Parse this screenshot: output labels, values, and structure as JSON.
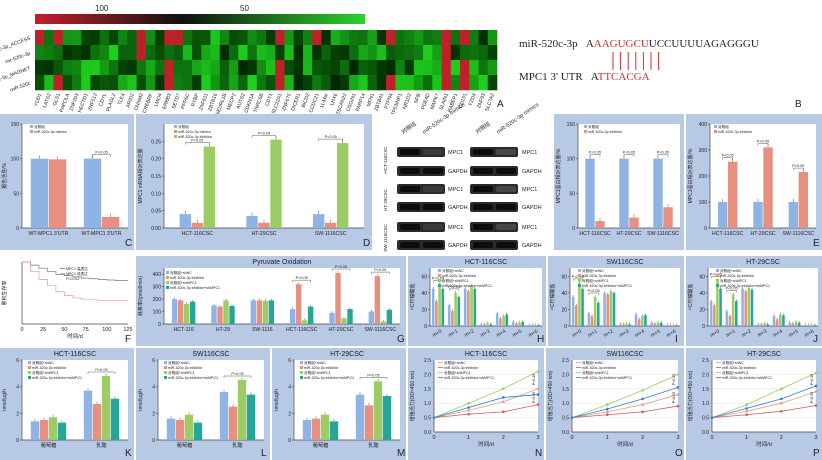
{
  "colors": {
    "panel_bg": "#b8c9e6",
    "plot_bg": "#ffffff",
    "heat_low": "#1a1a1a",
    "heat_green": "#2cd22c",
    "heat_red": "#c0202a",
    "blue": "#8fb4e3",
    "salmon": "#e8907f",
    "green": "#9ccc65",
    "teal": "#26a69a",
    "red_text": "#d32f2f"
  },
  "panelA": {
    "letter": "A",
    "scale_labels": [
      "100",
      "50"
    ],
    "row_labels": [
      "miR-520c-3p_ACCESS",
      "mir-520c-3p",
      "miR-520c-3p_MAGNET",
      "miR-520c"
    ],
    "col_labels": [
      "YOD1",
      "LATS2",
      "GLS1",
      "PAPOLA",
      "ZNF263",
      "HECTD1",
      "ZNF512",
      "CDYL",
      "PLAGL2",
      "TLE4",
      "ARID2",
      "CNNM2",
      "CREBRF",
      "LMO4",
      "ERBB3",
      "SETD7",
      "PPP6C",
      "RYBP",
      "ZNF611",
      "ZBTB16",
      "NEURL1B",
      "MECP2",
      "AUTS2",
      "CDKN1A",
      "TNRC6B",
      "CDT1",
      "SLC22A1",
      "ZNF675",
      "DICER1",
      "BICD2",
      "CCDC21",
      "11-Mar",
      "LHX6",
      "ZSCAN22",
      "OSGIN1",
      "PARP14",
      "MFN1",
      "ZBTB41",
      "PTPN4",
      "TP53INP1",
      "NR1D2",
      "NPB",
      "PDE4D",
      "MAPK7",
      "SLAIN1",
      "RABEP1",
      "CD151",
      "FZD4",
      "ZNF93",
      "SLC7A2"
    ]
  },
  "panelB": {
    "letter": "B",
    "mirna_label": "miR-520c-3p",
    "mirna_seq_prefix": "A",
    "mirna_seq_seed": "AAGUGCU",
    "mirna_seq_rest": "UCCUUUUAGAGGGU",
    "mrna_label": "MPC1 3' UTR",
    "mrna_seq_prefix": "A",
    "mrna_seq_seed": "TTCACGA"
  },
  "panelC": {
    "letter": "C",
    "ylabel": "报告活性/%",
    "yticks": [
      "0",
      "50",
      "100",
      "150"
    ],
    "legend": [
      "对照组",
      "miR-520c-3p mimics"
    ],
    "pvalue": "P<0.05",
    "categories": [
      "WT-MPC1 3'UTR",
      "WT-MPC1 3'UTR"
    ]
  },
  "panelD": {
    "letter": "D",
    "ylabel": "MPC1 mRNA相对表达量",
    "yticks": [
      "0.00",
      "0.05",
      "0.10",
      "0.15",
      "0.20",
      "0.25"
    ],
    "legend": [
      "对照组",
      "miR-520c-3p mimics",
      "miR-520c-3p inhibitor"
    ],
    "pvalue": "P<0.05",
    "categories": [
      "HCT-116CSC",
      "HT-29CSC",
      "SW-1116CSC"
    ]
  },
  "panelBlot": {
    "headers": [
      "对照组",
      "miR-520c-3p mimics",
      "对照组",
      "miR-520c-3p mimics"
    ],
    "row_labels": [
      "MPC1",
      "GAPDH",
      "MPC1",
      "GAPDH",
      "MPC1",
      "GAPDH"
    ],
    "side_labels": [
      "HCT-116CSC",
      "HT-29CSC",
      "SW-1116CSC"
    ]
  },
  "panelE1": {
    "ylabel": "MPC1蛋白相对表达量/%",
    "yticks": [
      "0",
      "50",
      "100",
      "150"
    ],
    "legend": [
      "对照组",
      "miR-520c-3p inhibitor"
    ],
    "pvalue": "P<0.05",
    "categories": [
      "HCT-116CSC",
      "HT-29CSC",
      "SW-1116CSC"
    ]
  },
  "panelE2": {
    "letter": "E",
    "ylabel": "MPC1蛋白相对表达量/%",
    "yticks": [
      "0",
      "100",
      "200",
      "300",
      "400"
    ],
    "legend": [
      "对照组",
      "miR-520c-3p inhibitor"
    ],
    "pvalue": "P<0.05",
    "categories": [
      "HCT-116CSC",
      "HT-29CSC",
      "SW-1116CSC"
    ]
  },
  "panelF": {
    "letter": "F",
    "ylabel": "累积生存率",
    "xlabel": "时间/d",
    "xticks": [
      "0",
      "25",
      "50",
      "75",
      "100",
      "125"
    ],
    "legend": [
      "MPC1 高表达",
      "MPC1 低表达",
      "P=0.012"
    ]
  },
  "panelG": {
    "letter": "G",
    "title": "Pyruvate Oxidation",
    "ylabel": "耗氧率/(pmol/min)",
    "yticks": [
      "0",
      "100",
      "200",
      "300",
      "400"
    ],
    "legend": [
      "对照组+shNC",
      "miR-520c-3p inhibitor",
      "对照组+shMPC1",
      "miR-520c-3p inhibitor+shMPC1"
    ],
    "pvalue": "P<0.05",
    "categories": [
      "HCT-116",
      "HT-29",
      "SW-1116",
      "HCT-116CSC",
      "HT-29CSC",
      "SW-1116CSC"
    ]
  },
  "panelH": {
    "letter": "H",
    "title": "HCT-116CSC",
    "ylabel": "¹³C柠檬酸盐",
    "yticks": [
      "0",
      "20",
      "40",
      "60"
    ],
    "legend": [
      "对照组+shNC",
      "miR-520c-3p inhibitor",
      "对照组+shMPC1",
      "miR-520c-3p inhibitor+shMPC1"
    ],
    "pvalue": "P<0.05",
    "categories": [
      "m+0",
      "m+1",
      "m+2",
      "m+3",
      "m+4",
      "m+5",
      "m+6"
    ]
  },
  "panelI": {
    "letter": "I",
    "title": "SW116CSC",
    "ylabel": "¹³C柠檬酸盐",
    "yticks": [
      "0",
      "20",
      "40",
      "60"
    ],
    "legend": [
      "对照组+shNC",
      "miR-520c-3p inhibitor",
      "对照组+shMPC1",
      "miR-520c-3p inhibitor+shMPC1"
    ],
    "pvalue": "P<0.05",
    "categories": [
      "m+0",
      "m+1",
      "m+2",
      "m+3",
      "m+4",
      "m+5",
      "m+6"
    ]
  },
  "panelJ": {
    "letter": "J",
    "title": "HT-29CSC",
    "ylabel": "¹³C柠檬酸盐",
    "yticks": [
      "0",
      "20",
      "40",
      "60"
    ],
    "legend": [
      "对照组+shNC",
      "miR-520c-3p inhibitor",
      "对照组+shMPC1",
      "miR-520c-3p inhibitor+shMPC1"
    ],
    "pvalue": "P<0.05",
    "categories": [
      "m+0",
      "m+1",
      "m+2",
      "m+3",
      "m+4",
      "m+5",
      "m+6"
    ]
  },
  "panelK": {
    "letter": "K",
    "title": "HCT-116CSC",
    "ylabel": "nmol/μg/h",
    "yticks": [
      "0",
      "2",
      "4",
      "6"
    ],
    "legend": [
      "对照组+shNC",
      "miR-520c-3p inhibitor",
      "对照组+shMPC1",
      "miR-520c-3p inhibitor+shMPC1"
    ],
    "pvalue": "P<0.05",
    "categories": [
      "葡萄糖",
      "乳酸"
    ]
  },
  "panelL": {
    "letter": "L",
    "title": "SW116CSC",
    "ylabel": "nmol/μg/h",
    "yticks": [
      "0",
      "2",
      "4",
      "6"
    ],
    "legend": [
      "对照组+shNC",
      "miR-520c-3p inhibitor",
      "对照组+shMPC1",
      "miR-520c-3p inhibitor+shMPC1"
    ],
    "pvalue": "P<0.05",
    "categories": [
      "葡萄糖",
      "乳酸"
    ]
  },
  "panelM": {
    "letter": "M",
    "title": "HT-29CSC",
    "ylabel": "nmol/μg/h",
    "yticks": [
      "0",
      "2",
      "4",
      "6"
    ],
    "legend": [
      "对照组+shNC",
      "miR-520c-3p inhibitor",
      "对照组+shMPC1",
      "miR-520c-3p inhibitor+shMPC1"
    ],
    "pvalue": "P<0.05",
    "categories": [
      "葡萄糖",
      "乳酸"
    ]
  },
  "panelN": {
    "letter": "N",
    "title": "HCT-116CSC",
    "ylabel": "增殖活力(OD=450 nm)",
    "xlabel": "时间/d",
    "yticks": [
      "0.0",
      "0.5",
      "1.0",
      "1.5",
      "2.0",
      "2.5"
    ],
    "xticks": [
      "0",
      "1",
      "2",
      "3"
    ],
    "legend": [
      "对照组+shNC",
      "miR-520c-3p inhibitor",
      "对照组+shMPC1",
      "miR-520c-3p inhibitor+shMPC1"
    ],
    "pvalue": "P<0.05"
  },
  "panelO": {
    "letter": "O",
    "title": "SW116CSC",
    "ylabel": "增殖活力(OD=450 nm)",
    "xlabel": "时间/d",
    "yticks": [
      "0.0",
      "0.5",
      "1.0",
      "1.5",
      "2.0",
      "2.5"
    ],
    "xticks": [
      "0",
      "1",
      "2",
      "3"
    ],
    "legend": [
      "对照组+shNC",
      "miR-520c-3p inhibitor",
      "对照组+shMPC1",
      "miR-520c-3p inhibitor+shMPC1"
    ],
    "pvalue": "P<0.05"
  },
  "panelP": {
    "letter": "P",
    "title": "HT-29CSC",
    "ylabel": "增殖活力(OD=450 nm)",
    "xlabel": "时间/d",
    "yticks": [
      "0.0",
      "0.5",
      "1.0",
      "1.5",
      "2.0",
      "2.5"
    ],
    "xticks": [
      "0",
      "1",
      "2",
      "3"
    ],
    "legend": [
      "对照组+shNC",
      "miR-520c-3p inhibitor",
      "对照组+shMPC1",
      "miR-520c-3p inhibitor+shMPC1"
    ],
    "pvalue": "P<0.05"
  },
  "chart_data": [
    {
      "id": "C",
      "type": "bar",
      "categories": [
        "WT-MPC1 3'UTR",
        "WT-MPC1 3'UTR"
      ],
      "series": [
        {
          "name": "对照组",
          "values": [
            100,
            100
          ]
        },
        {
          "name": "miR-520c-3p mimics",
          "values": [
            99,
            16
          ]
        }
      ],
      "ylim": [
        0,
        150
      ]
    },
    {
      "id": "D",
      "type": "bar",
      "categories": [
        "HCT-116CSC",
        "HT-29CSC",
        "SW-1116CSC"
      ],
      "series": [
        {
          "name": "对照组",
          "values": [
            0.04,
            0.035,
            0.04
          ]
        },
        {
          "name": "miR-520c-3p mimics",
          "values": [
            0.015,
            0.015,
            0.015
          ]
        },
        {
          "name": "miR-520c-3p inhibitor",
          "values": [
            0.235,
            0.255,
            0.245
          ]
        }
      ],
      "ylim": [
        0,
        0.3
      ]
    },
    {
      "id": "E1",
      "type": "bar",
      "categories": [
        "HCT-116CSC",
        "HT-29CSC",
        "SW-1116CSC"
      ],
      "series": [
        {
          "name": "对照组",
          "values": [
            100,
            100,
            100
          ]
        },
        {
          "name": "miR-520c-3p inhibitor",
          "values": [
            10,
            15,
            30
          ]
        }
      ],
      "ylim": [
        0,
        150
      ]
    },
    {
      "id": "E2",
      "type": "bar",
      "categories": [
        "HCT-116CSC",
        "HT-29CSC",
        "SW-1116CSC"
      ],
      "series": [
        {
          "name": "对照组",
          "values": [
            100,
            100,
            100
          ]
        },
        {
          "name": "miR-520c-3p inhibitor",
          "values": [
            255,
            310,
            215
          ]
        }
      ],
      "ylim": [
        0,
        400
      ]
    },
    {
      "id": "F",
      "type": "line",
      "x": [
        0,
        10,
        20,
        30,
        40,
        50,
        60,
        70,
        80,
        90,
        100,
        110,
        125
      ],
      "series": [
        {
          "name": "MPC1 高表达",
          "values": [
            1.0,
            0.95,
            0.9,
            0.85,
            0.8,
            0.78,
            0.76,
            0.74,
            0.73,
            0.72,
            0.71,
            0.7,
            0.7
          ]
        },
        {
          "name": "MPC1 低表达",
          "values": [
            1.0,
            0.85,
            0.72,
            0.62,
            0.52,
            0.46,
            0.42,
            0.4,
            0.39,
            0.38,
            0.38,
            0.38,
            0.38
          ]
        }
      ],
      "xlim": [
        0,
        125
      ],
      "ylim": [
        0,
        1
      ]
    },
    {
      "id": "G",
      "type": "bar",
      "categories": [
        "HCT-116",
        "HT-29",
        "SW-1116",
        "HCT-116CSC",
        "HT-29CSC",
        "SW-1116CSC"
      ],
      "series": [
        {
          "name": "对照组+shNC",
          "values": [
            200,
            150,
            190,
            120,
            90,
            100
          ]
        },
        {
          "name": "miR-520c-3p inhibitor",
          "values": [
            190,
            140,
            190,
            320,
            410,
            385
          ]
        },
        {
          "name": "对照组+shMPC1",
          "values": [
            160,
            190,
            185,
            30,
            45,
            20
          ]
        },
        {
          "name": "miR-520c-3p inhibitor+shMPC1",
          "values": [
            180,
            145,
            190,
            140,
            120,
            115
          ]
        }
      ],
      "ylim": [
        0,
        450
      ]
    },
    {
      "id": "H",
      "type": "bar",
      "categories": [
        "m+0",
        "m+1",
        "m+2",
        "m+3",
        "m+4",
        "m+5",
        "m+6"
      ],
      "series": [
        {
          "name": "对照组+shNC",
          "values": [
            45,
            25,
            45,
            2,
            15,
            5,
            1
          ]
        },
        {
          "name": "miR-520c-3p inhibitor",
          "values": [
            30,
            18,
            42,
            2,
            9,
            3,
            1
          ]
        },
        {
          "name": "对照组+shMPC1",
          "values": [
            50,
            40,
            48,
            3,
            12,
            4,
            1
          ]
        },
        {
          "name": "miR-520c-3p inhibitor+shMPC1",
          "values": [
            45,
            35,
            45,
            2,
            14,
            5,
            1
          ]
        }
      ],
      "ylim": [
        0,
        70
      ]
    },
    {
      "id": "I",
      "type": "bar",
      "categories": [
        "m+0",
        "m+1",
        "m+2",
        "m+3",
        "m+4",
        "m+5",
        "m+6"
      ],
      "series": [
        {
          "name": "对照组+shNC",
          "values": [
            35,
            15,
            40,
            2,
            14,
            4,
            1
          ]
        },
        {
          "name": "miR-520c-3p inhibitor",
          "values": [
            25,
            12,
            38,
            2,
            8,
            3,
            1
          ]
        },
        {
          "name": "对照组+shMPC1",
          "values": [
            52,
            35,
            42,
            3,
            12,
            4,
            1
          ]
        },
        {
          "name": "miR-520c-3p inhibitor+shMPC1",
          "values": [
            45,
            28,
            40,
            2,
            13,
            4,
            1
          ]
        }
      ],
      "ylim": [
        0,
        70
      ]
    },
    {
      "id": "J",
      "type": "bar",
      "categories": [
        "m+0",
        "m+1",
        "m+2",
        "m+3",
        "m+4",
        "m+5",
        "m+6"
      ],
      "series": [
        {
          "name": "对照组+shNC",
          "values": [
            30,
            18,
            45,
            2,
            12,
            4,
            1
          ]
        },
        {
          "name": "miR-520c-3p inhibitor",
          "values": [
            25,
            12,
            42,
            2,
            8,
            3,
            1
          ]
        },
        {
          "name": "对照组+shMPC1",
          "values": [
            55,
            38,
            46,
            3,
            14,
            5,
            1
          ]
        },
        {
          "name": "miR-520c-3p inhibitor+shMPC1",
          "values": [
            45,
            30,
            44,
            2,
            13,
            4,
            1
          ]
        }
      ],
      "ylim": [
        0,
        70
      ]
    },
    {
      "id": "K",
      "type": "bar",
      "categories": [
        "葡萄糖",
        "乳酸"
      ],
      "series": [
        {
          "name": "对照组+shNC",
          "values": [
            1.4,
            3.7
          ]
        },
        {
          "name": "miR-520c-3p inhibitor",
          "values": [
            1.5,
            2.7
          ]
        },
        {
          "name": "对照组+shMPC1",
          "values": [
            1.7,
            4.8
          ]
        },
        {
          "name": "miR-520c-3p inhibitor+shMPC1",
          "values": [
            1.3,
            3.1
          ]
        }
      ],
      "ylim": [
        0,
        6
      ]
    },
    {
      "id": "L",
      "type": "bar",
      "categories": [
        "葡萄糖",
        "乳酸"
      ],
      "series": [
        {
          "name": "对照组+shNC",
          "values": [
            1.6,
            3.6
          ]
        },
        {
          "name": "miR-520c-3p inhibitor",
          "values": [
            1.5,
            2.5
          ]
        },
        {
          "name": "对照组+shMPC1",
          "values": [
            1.9,
            4.5
          ]
        },
        {
          "name": "miR-520c-3p inhibitor+shMPC1",
          "values": [
            1.3,
            3.4
          ]
        }
      ],
      "ylim": [
        0,
        6
      ]
    },
    {
      "id": "M",
      "type": "bar",
      "categories": [
        "葡萄糖",
        "乳酸"
      ],
      "series": [
        {
          "name": "对照组+shNC",
          "values": [
            1.5,
            3.4
          ]
        },
        {
          "name": "miR-520c-3p inhibitor",
          "values": [
            1.6,
            2.6
          ]
        },
        {
          "name": "对照组+shMPC1",
          "values": [
            1.9,
            4.4
          ]
        },
        {
          "name": "miR-520c-3p inhibitor+shMPC1",
          "values": [
            1.4,
            3.3
          ]
        }
      ],
      "ylim": [
        0,
        6
      ]
    },
    {
      "id": "N",
      "type": "line",
      "x": [
        0,
        1,
        2,
        3
      ],
      "series": [
        {
          "name": "对照组+shNC",
          "values": [
            0.5,
            0.75,
            1.05,
            1.5
          ]
        },
        {
          "name": "miR-520c-3p inhibitor",
          "values": [
            0.5,
            0.62,
            0.7,
            0.95
          ]
        },
        {
          "name": "对照组+shMPC1",
          "values": [
            0.5,
            1.0,
            1.5,
            2.1
          ]
        },
        {
          "name": "miR-520c-3p inhibitor+shMPC1",
          "values": [
            0.5,
            0.85,
            1.2,
            1.3
          ]
        }
      ],
      "ylim": [
        0,
        2.5
      ]
    },
    {
      "id": "O",
      "type": "line",
      "x": [
        0,
        1,
        2,
        3
      ],
      "series": [
        {
          "name": "对照组+shNC",
          "values": [
            0.5,
            0.7,
            0.95,
            1.3
          ]
        },
        {
          "name": "miR-520c-3p inhibitor",
          "values": [
            0.5,
            0.6,
            0.7,
            0.9
          ]
        },
        {
          "name": "对照组+shMPC1",
          "values": [
            0.5,
            0.95,
            1.45,
            2.0
          ]
        },
        {
          "name": "miR-520c-3p inhibitor+shMPC1",
          "values": [
            0.5,
            0.8,
            1.15,
            1.55
          ]
        }
      ],
      "ylim": [
        0,
        2.5
      ]
    },
    {
      "id": "P",
      "type": "line",
      "x": [
        0,
        1,
        2,
        3
      ],
      "series": [
        {
          "name": "对照组+shNC",
          "values": [
            0.5,
            0.72,
            1.0,
            1.4
          ]
        },
        {
          "name": "miR-520c-3p inhibitor",
          "values": [
            0.5,
            0.6,
            0.72,
            0.92
          ]
        },
        {
          "name": "对照组+shMPC1",
          "values": [
            0.5,
            0.95,
            1.5,
            2.05
          ]
        },
        {
          "name": "miR-520c-3p inhibitor+shMPC1",
          "values": [
            0.5,
            0.82,
            1.15,
            1.6
          ]
        }
      ],
      "ylim": [
        0,
        2.5
      ]
    }
  ]
}
